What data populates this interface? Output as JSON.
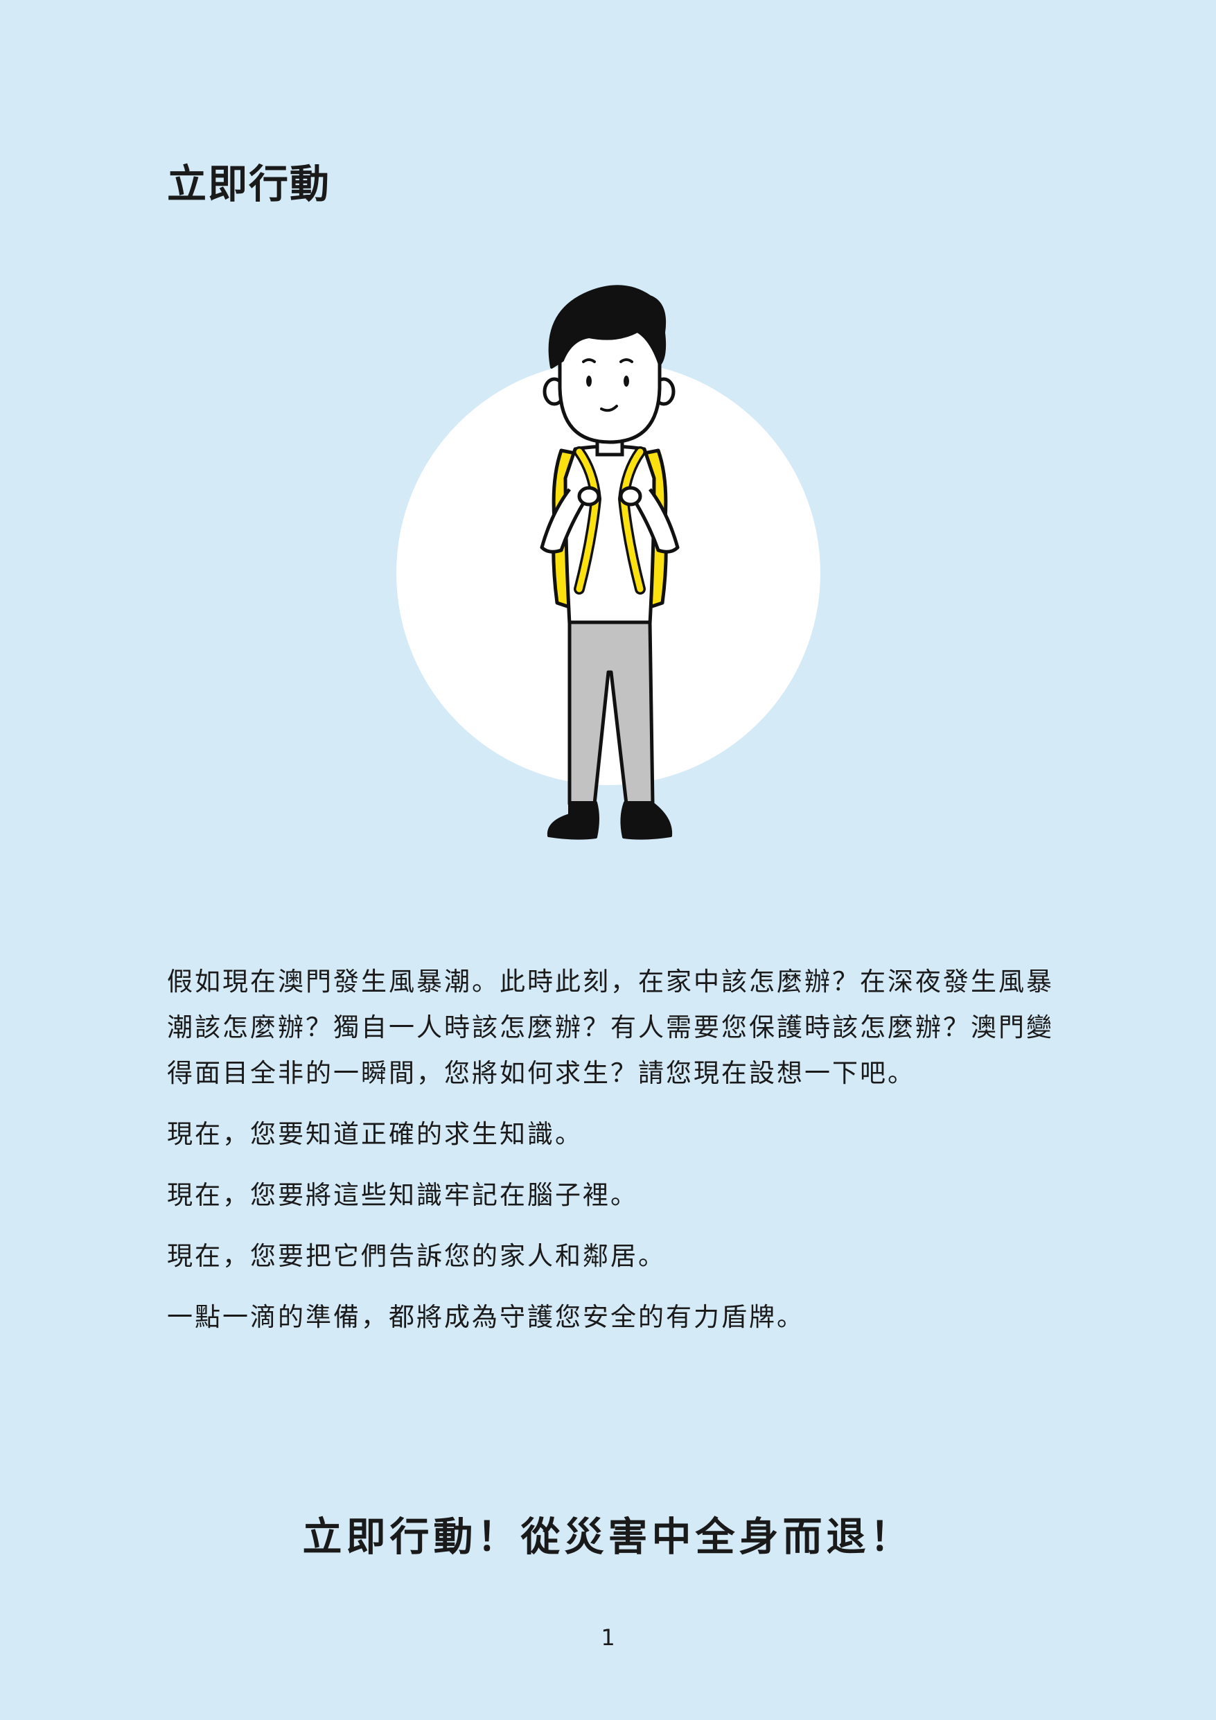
{
  "page": {
    "title": "立即行動",
    "paragraphs": [
      "假如現在澳門發生風暴潮。此時此刻，在家中該怎麼辦？在深夜發生風暴潮該怎麼辦？獨自一人時該怎麼辦？有人需要您保護時該怎麼辦？澳門變得面目全非的一瞬間，您將如何求生？請您現在設想一下吧。",
      "現在，您要知道正確的求生知識。",
      "現在，您要將這些知識牢記在腦子裡。",
      "現在，您要把它們告訴您的家人和鄰居。",
      "一點一滴的準備，都將成為守護您安全的有力盾牌。"
    ],
    "slogan": "立即行動！從災害中全身而退！",
    "page_number": "1"
  },
  "colors": {
    "background": "#d4eaf7",
    "circle": "#ffffff",
    "backpack": "#fbe10f",
    "pants": "#c2c2c2",
    "outline": "#111111"
  },
  "illustration": {
    "subject": "boy-with-yellow-backpack"
  }
}
